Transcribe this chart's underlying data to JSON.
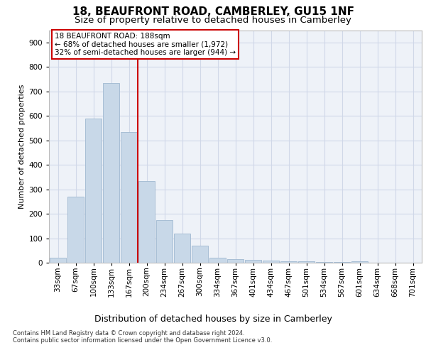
{
  "title": "18, BEAUFRONT ROAD, CAMBERLEY, GU15 1NF",
  "subtitle": "Size of property relative to detached houses in Camberley",
  "xlabel": "Distribution of detached houses by size in Camberley",
  "ylabel": "Number of detached properties",
  "categories": [
    "33sqm",
    "67sqm",
    "100sqm",
    "133sqm",
    "167sqm",
    "200sqm",
    "234sqm",
    "267sqm",
    "300sqm",
    "334sqm",
    "367sqm",
    "401sqm",
    "434sqm",
    "467sqm",
    "501sqm",
    "534sqm",
    "567sqm",
    "601sqm",
    "634sqm",
    "668sqm",
    "701sqm"
  ],
  "values": [
    20,
    270,
    590,
    735,
    535,
    335,
    175,
    120,
    70,
    20,
    15,
    12,
    8,
    7,
    5,
    4,
    4,
    7,
    0,
    0,
    0
  ],
  "bar_color": "#c8d8e8",
  "bar_edge_color": "#a0b8d0",
  "vline_color": "#cc0000",
  "annotation_text": "18 BEAUFRONT ROAD: 188sqm\n← 68% of detached houses are smaller (1,972)\n32% of semi-detached houses are larger (944) →",
  "annotation_box_color": "#ffffff",
  "annotation_box_edge_color": "#cc0000",
  "ylim": [
    0,
    950
  ],
  "yticks": [
    0,
    100,
    200,
    300,
    400,
    500,
    600,
    700,
    800,
    900
  ],
  "grid_color": "#d0d8e8",
  "background_color": "#eef2f8",
  "footnote": "Contains HM Land Registry data © Crown copyright and database right 2024.\nContains public sector information licensed under the Open Government Licence v3.0.",
  "title_fontsize": 11,
  "subtitle_fontsize": 9.5,
  "xlabel_fontsize": 9,
  "ylabel_fontsize": 8,
  "tick_fontsize": 7.5,
  "annot_fontsize": 7.5,
  "footnote_fontsize": 6
}
